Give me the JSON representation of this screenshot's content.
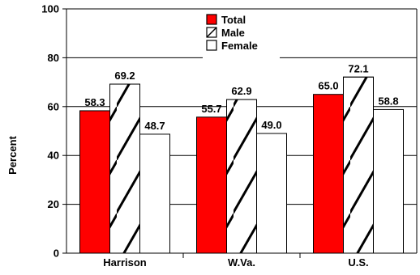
{
  "chart_data": {
    "type": "bar",
    "categories": [
      "Harrison",
      "W.Va.",
      "U.S."
    ],
    "series": [
      {
        "name": "Total",
        "values": [
          58.3,
          55.7,
          65.0
        ],
        "labels": [
          "58.3",
          "55.7",
          "65.0"
        ],
        "color": "#ff0000",
        "pattern": "solid"
      },
      {
        "name": "Male",
        "values": [
          69.2,
          62.9,
          72.1
        ],
        "labels": [
          "69.2",
          "62.9",
          "72.1"
        ],
        "color": "#ffffff",
        "pattern": "diagonal-hatch"
      },
      {
        "name": "Female",
        "values": [
          48.7,
          49.0,
          58.8
        ],
        "labels": [
          "48.7",
          "49.0",
          "58.8"
        ],
        "color": "#ffffff",
        "pattern": "none"
      }
    ],
    "ylabel": "Percent",
    "xlabel": "",
    "ylim": [
      0,
      100
    ],
    "yticks": [
      0,
      20,
      40,
      60,
      80,
      100
    ],
    "ytick_labels": [
      "0",
      "20",
      "40",
      "60",
      "80",
      "100"
    ],
    "grid": "horizontal",
    "legend_position": "top-center"
  }
}
